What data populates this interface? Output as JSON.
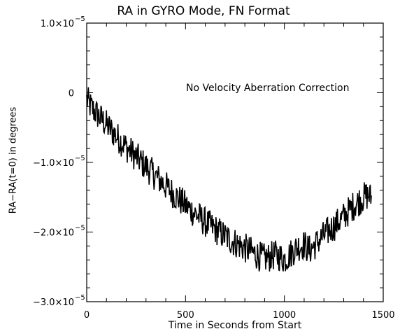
{
  "chart_data": {
    "type": "line",
    "title": "RA in GYRO Mode, FN Format",
    "xlabel": "Time in Seconds from Start",
    "ylabel": "RA−RA(t=0) in degrees",
    "annotation": "No Velocity Aberration Correction",
    "xlim": [
      0,
      1500
    ],
    "ylim": [
      -3e-05,
      1e-05
    ],
    "x_ticks": [
      {
        "value": 0,
        "label": "0"
      },
      {
        "value": 500,
        "label": "500"
      },
      {
        "value": 1000,
        "label": "1000"
      },
      {
        "value": 1500,
        "label": "1500"
      }
    ],
    "y_ticks": [
      {
        "value": 1e-05,
        "label": "1.0×10",
        "exp": "−5"
      },
      {
        "value": 0,
        "label": "0",
        "exp": ""
      },
      {
        "value": -1e-05,
        "label": "−1.0×10",
        "exp": "−5"
      },
      {
        "value": -2e-05,
        "label": "−2.0×10",
        "exp": "−5"
      },
      {
        "value": -3e-05,
        "label": "−3.0×10",
        "exp": "−5"
      }
    ],
    "series": [
      {
        "x": [
          0,
          25,
          50,
          75,
          100,
          125,
          150,
          175,
          200,
          225,
          250,
          275,
          300,
          325,
          350,
          375,
          400,
          425,
          450,
          475,
          500,
          525,
          550,
          575,
          600,
          625,
          650,
          675,
          700,
          725,
          750,
          775,
          800,
          825,
          850,
          875,
          900,
          925,
          950,
          975,
          1000,
          1025,
          1050,
          1075,
          1100,
          1125,
          1150,
          1175,
          1200,
          1225,
          1250,
          1275,
          1300,
          1325,
          1350,
          1375,
          1400,
          1425,
          1440
        ],
        "y": [
          -1e-06,
          -2.2e-06,
          -3e-06,
          -3.8e-06,
          -4.6e-06,
          -5.4e-06,
          -6.2e-06,
          -7e-06,
          -7.8e-06,
          -8.5e-06,
          -9.2e-06,
          -9.9e-06,
          -1.06e-05,
          -1.13e-05,
          -1.2e-05,
          -1.27e-05,
          -1.34e-05,
          -1.41e-05,
          -1.48e-05,
          -1.55e-05,
          -1.62e-05,
          -1.68e-05,
          -1.74e-05,
          -1.8e-05,
          -1.86e-05,
          -1.91e-05,
          -1.96e-05,
          -2.01e-05,
          -2.06e-05,
          -2.11e-05,
          -2.15e-05,
          -2.19e-05,
          -2.23e-05,
          -2.27e-05,
          -2.31e-05,
          -2.35e-05,
          -2.38e-05,
          -2.36e-05,
          -2.33e-05,
          -2.35e-05,
          -2.39e-05,
          -2.33e-05,
          -2.25e-05,
          -2.2e-05,
          -2.18e-05,
          -2.26e-05,
          -2.2e-05,
          -2.12e-05,
          -2.05e-05,
          -1.98e-05,
          -1.92e-05,
          -1.85e-05,
          -1.78e-05,
          -1.7e-05,
          -1.62e-05,
          -1.56e-05,
          -1.5e-05,
          -1.47e-05,
          -1.52e-05
        ],
        "noise_amplitude": 2.2e-06
      }
    ]
  }
}
